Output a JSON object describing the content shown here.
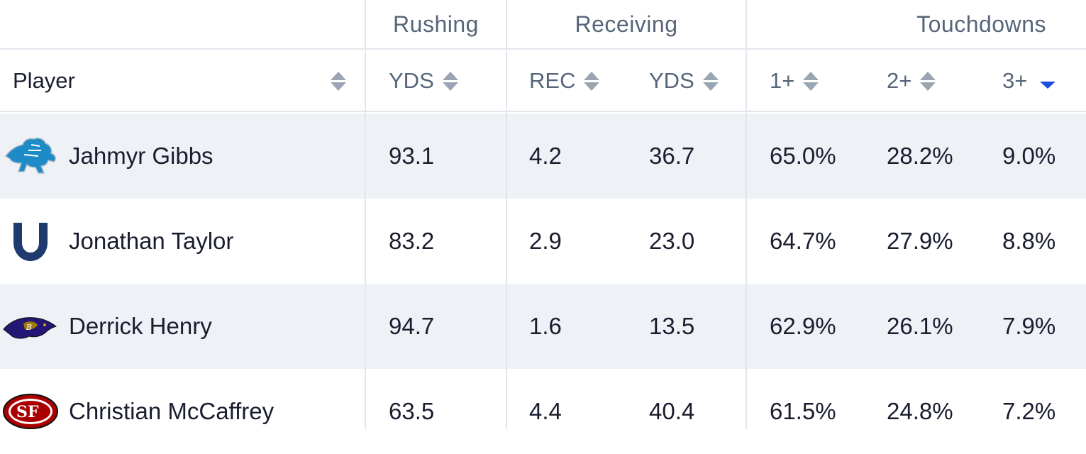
{
  "groups": {
    "rushing": "Rushing",
    "receiving": "Receiving",
    "touchdowns": "Touchdowns"
  },
  "columns": {
    "player": "Player",
    "rush_yds": "YDS",
    "rec": "REC",
    "rec_yds": "YDS",
    "td1": "1+",
    "td2": "2+",
    "td3": "3+"
  },
  "sorted_column": "td3",
  "sort_direction": "descending",
  "rows": [
    {
      "team_logo": "detroit-lions-logo",
      "name": "Jahmyr Gibbs",
      "rush_yds": "93.1",
      "rec": "4.2",
      "rec_yds": "36.7",
      "td1": "65.0%",
      "td2": "28.2%",
      "td3": "9.0%"
    },
    {
      "team_logo": "indianapolis-colts-logo",
      "name": "Jonathan Taylor",
      "rush_yds": "83.2",
      "rec": "2.9",
      "rec_yds": "23.0",
      "td1": "64.7%",
      "td2": "27.9%",
      "td3": "8.8%"
    },
    {
      "team_logo": "baltimore-ravens-logo",
      "name": "Derrick Henry",
      "rush_yds": "94.7",
      "rec": "1.6",
      "rec_yds": "13.5",
      "td1": "62.9%",
      "td2": "26.1%",
      "td3": "7.9%"
    },
    {
      "team_logo": "san-francisco-49ers-logo",
      "name": "Christian McCaffrey",
      "rush_yds": "63.5",
      "rec": "4.4",
      "rec_yds": "40.4",
      "td1": "61.5%",
      "td2": "24.8%",
      "td3": "7.2%"
    }
  ],
  "colors": {
    "accent": "#1b4fd9",
    "header_text": "#56657a",
    "alt_row": "#eef2f7",
    "divider": "#e2e6ec"
  }
}
